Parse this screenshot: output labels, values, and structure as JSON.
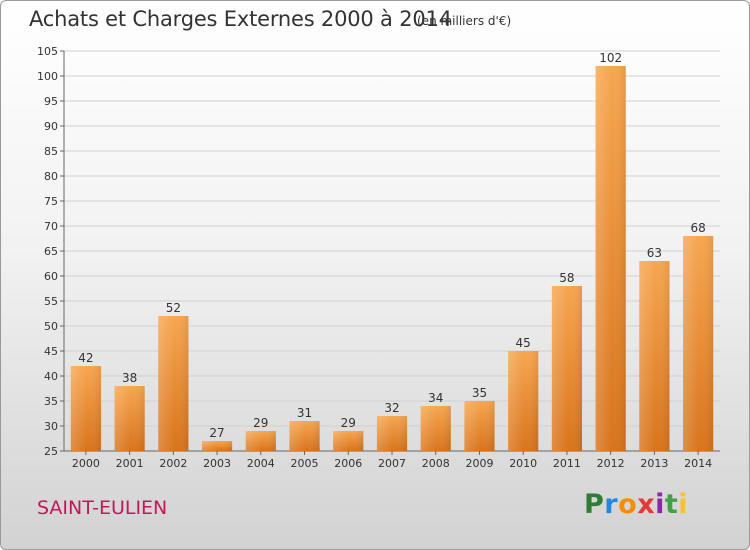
{
  "chart_data": {
    "type": "bar",
    "title": "Achats et Charges Externes 2000 à 2014",
    "subtitle": "(en milliers d'€)",
    "categories": [
      "2000",
      "2001",
      "2002",
      "2003",
      "2004",
      "2005",
      "2006",
      "2007",
      "2008",
      "2009",
      "2010",
      "2011",
      "2012",
      "2013",
      "2014"
    ],
    "values": [
      42,
      38,
      52,
      27,
      29,
      31,
      29,
      32,
      34,
      35,
      45,
      58,
      102,
      63,
      68
    ],
    "ylim": [
      25,
      105
    ],
    "yticks": [
      25,
      30,
      35,
      40,
      45,
      50,
      55,
      60,
      65,
      70,
      75,
      80,
      85,
      90,
      95,
      100,
      105
    ],
    "grid": true,
    "bar_color": "#f59a3e"
  },
  "footer": {
    "town": "SAINT-EULIEN",
    "logo": [
      "P",
      "r",
      "o",
      "x",
      "i",
      "t",
      "i"
    ]
  }
}
